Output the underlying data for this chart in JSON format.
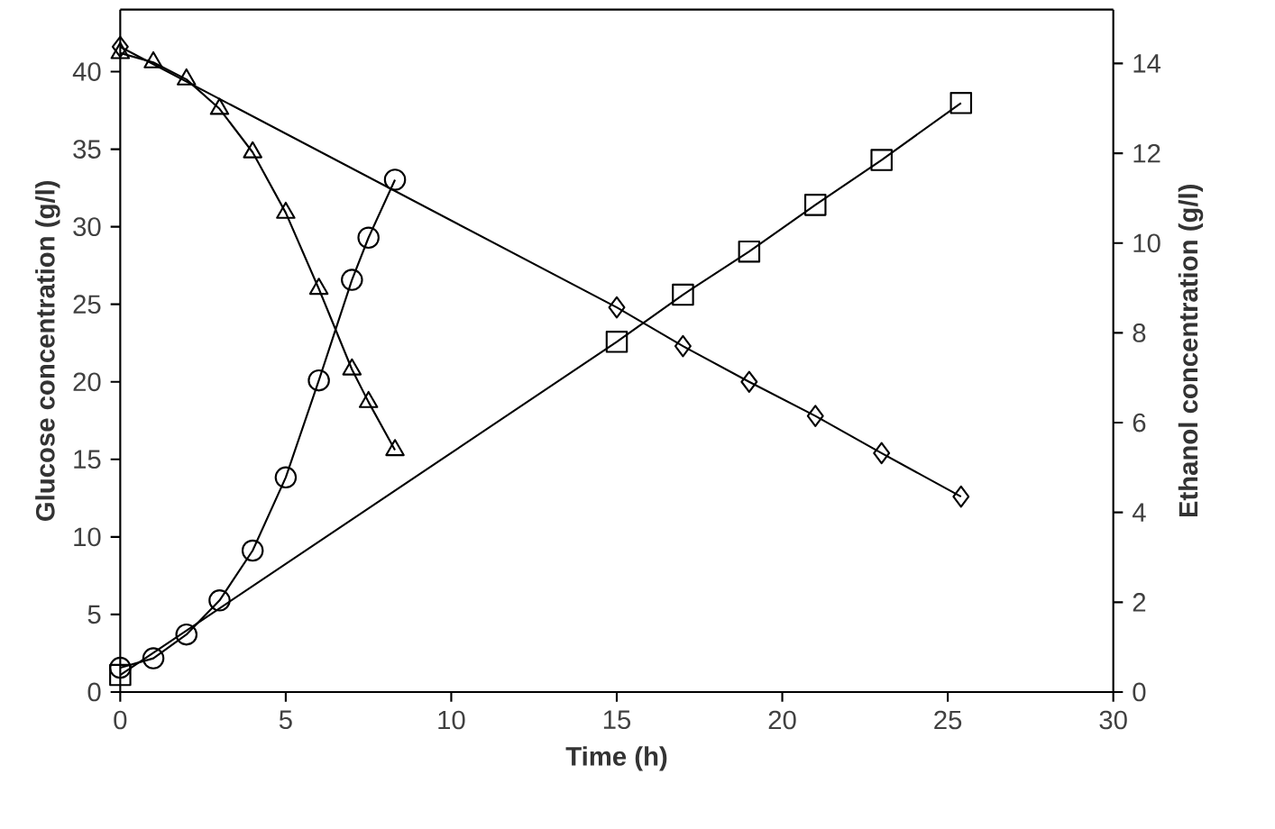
{
  "chart_data": {
    "type": "line",
    "xlabel": "Time (h)",
    "ylabel": "Glucose concentration (g/l)",
    "y2label": "Ethanol concentration (g/l)",
    "xlim": [
      0,
      30
    ],
    "xticks": [
      0,
      5,
      10,
      15,
      20,
      25,
      30
    ],
    "ylim": [
      0,
      44
    ],
    "yticks": [
      0,
      5,
      10,
      15,
      20,
      25,
      30,
      35,
      40
    ],
    "y2lim": [
      0,
      15.2
    ],
    "y2ticks": [
      0,
      2,
      4,
      6,
      8,
      10,
      12,
      14
    ],
    "series": [
      {
        "color": "#000000",
        "marker": "diamond",
        "axis": "y",
        "x": [
          0,
          15,
          17,
          19,
          21,
          23,
          25.4
        ],
        "values": [
          41.6,
          24.8,
          22.3,
          20.0,
          17.8,
          15.4,
          12.6
        ]
      },
      {
        "color": "#000000",
        "marker": "triangle",
        "axis": "y",
        "x": [
          0,
          1,
          2,
          3,
          4,
          5,
          6,
          7,
          7.5,
          8.3
        ],
        "values": [
          41.2,
          40.6,
          39.5,
          37.6,
          34.8,
          30.9,
          26.0,
          20.8,
          18.7,
          15.6
        ]
      },
      {
        "color": "#000000",
        "marker": "circle",
        "axis": "y2",
        "x": [
          0,
          1,
          2,
          3,
          4,
          5,
          6,
          7,
          7.5,
          8.3
        ],
        "values": [
          0.54,
          0.75,
          1.28,
          2.04,
          3.15,
          4.78,
          6.94,
          9.18,
          10.12,
          11.41
        ]
      },
      {
        "color": "#000000",
        "marker": "square",
        "axis": "y2",
        "x": [
          0,
          15,
          17,
          19,
          21,
          23,
          25.4
        ],
        "values": [
          0.38,
          7.8,
          8.85,
          9.81,
          10.85,
          11.85,
          13.12
        ]
      }
    ]
  }
}
